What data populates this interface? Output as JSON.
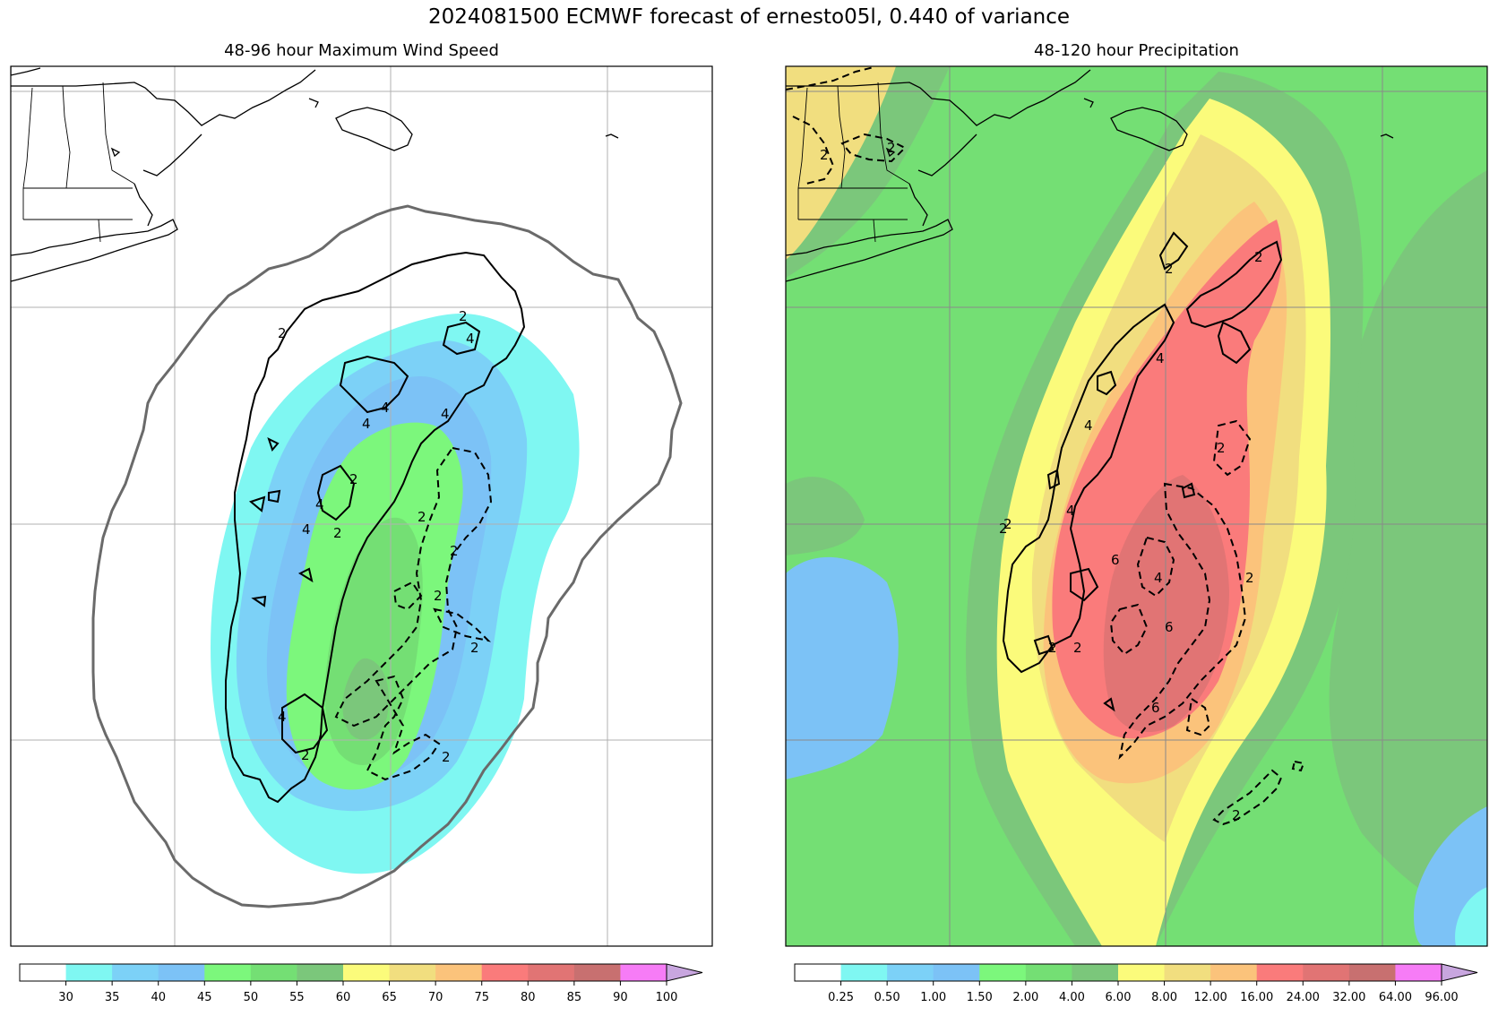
{
  "suptitle": "2024081500 ECMWF forecast of ernesto05l, 0.440 of variance",
  "chart_data": [
    {
      "type": "heatmap",
      "title": "48-96 hour Maximum Wind Speed",
      "colorbar": {
        "levels": [
          "30",
          "35",
          "40",
          "45",
          "50",
          "55",
          "60",
          "65",
          "70",
          "75",
          "80",
          "85",
          "90",
          "100"
        ],
        "colors": [
          "#ffffff",
          "#7ff7f2",
          "#7cd1f7",
          "#7cc2f6",
          "#7cf77c",
          "#74df74",
          "#7bc77b",
          "#fbfb7b",
          "#f1de7f",
          "#fbc37b",
          "#fa7b7b",
          "#e17474",
          "#c87070",
          "#f67cf6",
          "#c8a6df"
        ],
        "extend": "max"
      },
      "contour_labels": [
        "2",
        "2",
        "4",
        "4",
        "4",
        "4",
        "4",
        "4",
        "4",
        "2",
        "2",
        "2",
        "2",
        "2",
        "2",
        "2",
        "2"
      ],
      "gridlines": true
    },
    {
      "type": "heatmap",
      "title": "48-120 hour Precipitation",
      "colorbar": {
        "levels": [
          "0.25",
          "0.50",
          "1.00",
          "1.50",
          "2.00",
          "4.00",
          "6.00",
          "8.00",
          "12.00",
          "16.00",
          "24.00",
          "32.00",
          "64.00",
          "96.00"
        ],
        "colors": [
          "#ffffff",
          "#7ff7f2",
          "#7cd1f7",
          "#7cc2f6",
          "#7cf77c",
          "#74df74",
          "#7bc77b",
          "#fbfb7b",
          "#f1de7f",
          "#fbc37b",
          "#fa7b7b",
          "#e17474",
          "#c87070",
          "#f67cf6",
          "#c8a6df"
        ],
        "extend": "max"
      },
      "contour_labels": [
        "2",
        "2",
        "2",
        "4",
        "4",
        "4",
        "6",
        "2",
        "2",
        "2",
        "2",
        "2",
        "4",
        "6",
        "6",
        "2",
        "2",
        "2"
      ],
      "gridlines": true
    }
  ]
}
